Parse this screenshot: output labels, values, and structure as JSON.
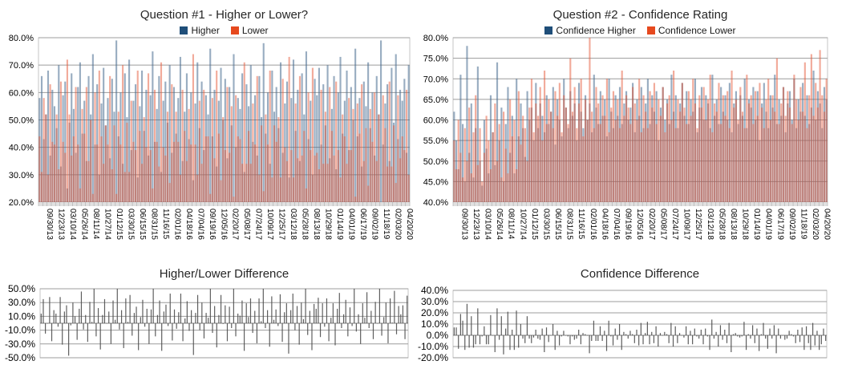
{
  "page": {
    "background": "#ffffff"
  },
  "colors": {
    "grid": "#9c9c9c",
    "plot_border": "#c6c6c6",
    "axis_band": "#e0e0e0",
    "axis_band_tick": "#b3b3b3",
    "zero_line": "#808080",
    "diff_bar": "#4d4d4d",
    "higher_bar": "rgba(70,106,142,0.55)",
    "lower_bar": "rgba(230,88,55,0.5)",
    "legend_blue": "#1F4E79",
    "legend_red": "#E6491E"
  },
  "chart_data": [
    {
      "id": "q1",
      "type": "bar",
      "title": "Question #1 - Higher or Lower?",
      "legend": [
        {
          "label": "Higher",
          "color": "#1F4E79"
        },
        {
          "label": "Lower",
          "color": "#E6491E"
        }
      ],
      "ylim": [
        20,
        80
      ],
      "yticks": [
        80,
        70,
        60,
        50,
        40,
        30,
        20
      ],
      "ytick_labels": [
        "80.0%",
        "70.0%",
        "60.0%",
        "50.0%",
        "40.0%",
        "30.0%",
        "20.0%"
      ],
      "grid": true,
      "legend_position": "top",
      "categories": [
        "09/30/13",
        "12/23/13",
        "03/10/14",
        "05/26/14",
        "08/11/14",
        "10/27/14",
        "01/12/15",
        "03/30/15",
        "06/15/15",
        "08/31/15",
        "11/16/15",
        "02/01/16",
        "04/18/16",
        "07/04/16",
        "09/19/16",
        "12/05/16",
        "02/20/17",
        "05/08/17",
        "07/24/17",
        "10/09/17",
        "12/25/17",
        "03/12/18",
        "05/28/18",
        "08/13/18",
        "10/29/18",
        "01/14/19",
        "04/01/19",
        "06/17/19",
        "09/02/19",
        "11/18/19",
        "02/03/20",
        "04/20/20"
      ],
      "series": [
        {
          "name": "Higher",
          "values": "58,66,43,52,68,37,61,55,47,70,33,59,64,25,49,67,54,38,62,71,45,57,35,66,52,74,41,63,30,56,69,48,58,36,65,53,79,44,60,34,67,51,72,39,57,63,29,55,68,46,61,37,59,75,42,54,66,31,57,64,49,70,38,62,45,58,73,35,53,67,43,60,28,56,71,47,64,39,59,52,76,44,61,33,57,69,50,65,36,62,48,74,40,58,54,67,31,63,55,70,42,59,37,66,51,78,45,60,34,68,53,62,47,71,38,56,64,29,58,72,46,61,35,67,52,75,43,57,30,65,59,69,41,63,48,70,36,54,66,32,60,73,45,57,68,39,62,50,76,44,58,33,64,55,71,47,60,37,66,52,79,41,56,63,35,69,49,74,43,61,57,65,38,70"
        },
        {
          "name": "Lower",
          "values": "44,31,58,52,30,63,42,41,52,32,64,42,38,72,52,37,44,62,41,25,54,45,62,35,50,23,60,41,68,44,34,48,41,66,32,48,23,53,41,70,31,49,31,57,42,39,68,46,34,51,40,67,39,25,61,42,33,71,40,37,53,27,63,42,53,42,30,61,46,35,54,41,74,41,30,57,34,61,44,44,23,58,36,68,45,28,51,39,62,38,55,22,59,44,43,34,71,34,46,34,56,41,66,30,48,24,52,41,68,29,48,42,51,29,65,40,35,73,39,29,56,36,66,37,46,25,60,39,69,37,38,32,61,34,53,34,62,46,37,64,39,29,52,44,34,58,39,54,22,56,45,63,35,47,26,54,42,60,35,52,19,59,47,33,64,33,48,27,59,36,44,39,61,30"
        }
      ]
    },
    {
      "id": "q2",
      "type": "bar",
      "title": "Question #2 - Confidence Rating",
      "legend": [
        {
          "label": "Confidence Higher",
          "color": "#1F4E79"
        },
        {
          "label": "Confidence Lower",
          "color": "#E6491E"
        }
      ],
      "ylim": [
        40,
        80
      ],
      "yticks": [
        80,
        75,
        70,
        65,
        60,
        55,
        50,
        45,
        40
      ],
      "ytick_labels": [
        "80.0%",
        "75.0%",
        "70.0%",
        "65.0%",
        "60.0%",
        "55.0%",
        "50.0%",
        "45.0%",
        "40.0%"
      ],
      "grid": true,
      "legend_position": "top",
      "categories": [
        "09/30/13",
        "12/23/13",
        "03/10/14",
        "05/26/14",
        "08/11/14",
        "10/27/14",
        "01/12/15",
        "03/30/15",
        "06/15/15",
        "08/31/15",
        "11/16/15",
        "02/01/16",
        "04/18/16",
        "07/04/16",
        "09/19/16",
        "12/05/16",
        "02/20/17",
        "05/08/17",
        "07/24/17",
        "10/09/17",
        "12/25/17",
        "03/12/18",
        "05/28/18",
        "08/13/18",
        "10/29/18",
        "01/14/19",
        "04/01/19",
        "06/17/19",
        "09/02/19",
        "11/18/19",
        "02/03/20",
        "04/20/20"
      ],
      "series": [
        {
          "name": "Confidence Higher",
          "values": "62,55,48,71,59,45,78,52,64,46,58,73,50,44,60,53,47,66,57,49,74,55,63,45,59,68,52,61,47,70,56,64,58,51,67,60,63,55,69,58,64,61,57,66,59,62,68,54,65,60,56,70,63,58,67,61,64,55,69,62,58,66,60,64,57,71,63,59,67,61,65,56,70,62,58,66,61,68,59,64,67,60,63,69,57,65,61,68,58,64,70,59,66,62,67,55,63,68,60,65,59,71,62,66,58,64,69,61,67,59,65,62,70,57,63,68,60,66,64,58,71,61,65,59,68,62,66,60,69,57,64,67,59,66,61,70,58,65,63,68,60,67,55,64,69,62,58,66,63,71,59,65,61,68,57,64,67,60,70,58,65,62,69,61,66,59,63,72,60,67,64,58,68,65"
        },
        {
          "name": "Confidence Lower",
          "values": "55,48,60,52,46,58,50,63,47,57,66,49,58,45,52,61,55,48,57,64,50,59,46,62,53,47,65,56,60,48,67,54,61,58,50,63,70,57,64,61,68,55,72,59,65,62,58,67,61,69,57,66,63,59,75,62,68,58,64,70,56,65,60,80,62,58,68,64,59,66,61,70,57,63,67,60,65,58,72,61,66,63,59,68,64,60,70,57,66,62,58,67,63,69,59,65,61,68,57,64,66,60,72,58,65,62,69,63,59,67,61,70,64,58,66,63,68,60,65,71,57,64,62,69,59,66,61,67,58,72,63,65,60,68,62,58,71,64,66,59,67,61,69,63,58,65,70,60,66,62,75,59,64,68,61,67,63,59,71,65,60,68,62,74,58,66,76,61,69,63,77,66,62,70"
        }
      ]
    },
    {
      "id": "d1",
      "type": "bar",
      "title": "Higher/Lower Difference",
      "derived_from": "q1",
      "note": "values = Higher - Lower (per point, from chart q1 series)",
      "ylim": [
        -50,
        50
      ],
      "yticks": [
        50,
        30,
        10,
        -10,
        -30,
        -50
      ],
      "ytick_labels": [
        "50.0%",
        "30.0%",
        "10.0%",
        "-10.0%",
        "-30.0%",
        "-50.0%"
      ],
      "grid": true,
      "legend_position": "none"
    },
    {
      "id": "d2",
      "type": "bar",
      "title": "Confidence Difference",
      "derived_from": "q2",
      "note": "values = Confidence Higher - Confidence Lower (per point, from chart q2 series)",
      "ylim": [
        -20,
        40
      ],
      "yticks": [
        40,
        30,
        20,
        10,
        0,
        -10,
        -20
      ],
      "ytick_labels": [
        "40.0%",
        "30.0%",
        "20.0%",
        "10.0%",
        "0.0%",
        "-10.0%",
        "-20.0%"
      ],
      "grid": true,
      "legend_position": "none"
    }
  ]
}
